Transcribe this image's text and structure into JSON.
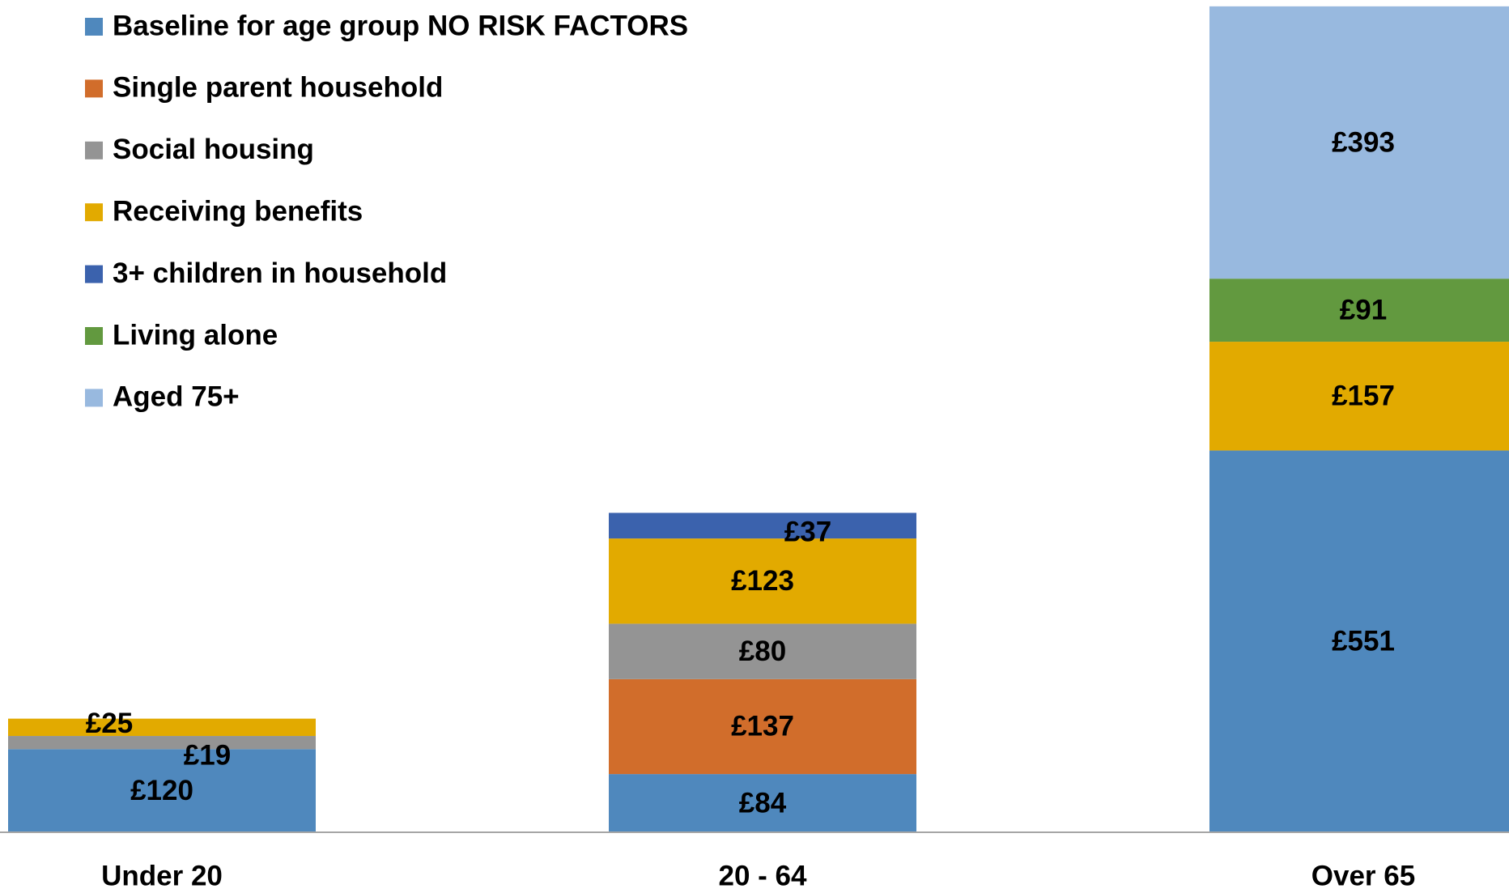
{
  "chart_data": {
    "type": "stacked_bar",
    "categories": [
      "Under 20",
      "20 - 64",
      "Over 65"
    ],
    "ylim": [
      0,
      1200
    ],
    "series": [
      {
        "name": "Baseline for age group NO RISK FACTORS",
        "color": "#4f88bd",
        "values": [
          120,
          84,
          551
        ],
        "value_labels": [
          "£120",
          "£84",
          "£551"
        ]
      },
      {
        "name": "Single parent household",
        "color": "#d16d2b",
        "values": [
          null,
          137,
          null
        ],
        "value_labels": [
          null,
          "£137",
          null
        ]
      },
      {
        "name": "Social housing",
        "color": "#949494",
        "values": [
          19,
          80,
          null
        ],
        "value_labels": [
          "£19",
          "£80",
          null
        ]
      },
      {
        "name": "Receiving benefits",
        "color": "#e2aa00",
        "values": [
          25,
          123,
          157
        ],
        "value_labels": [
          "£25",
          "£123",
          "£157"
        ]
      },
      {
        "name": "3+ children in household",
        "color": "#3b62ad",
        "values": [
          null,
          37,
          null
        ],
        "value_labels": [
          null,
          "£37",
          null
        ]
      },
      {
        "name": "Living alone",
        "color": "#62993f",
        "values": [
          null,
          null,
          91
        ],
        "value_labels": [
          null,
          null,
          "£91"
        ]
      },
      {
        "name": "Aged 75+",
        "color": "#98b9df",
        "values": [
          null,
          null,
          393
        ],
        "value_labels": [
          null,
          null,
          "£393"
        ]
      }
    ]
  }
}
